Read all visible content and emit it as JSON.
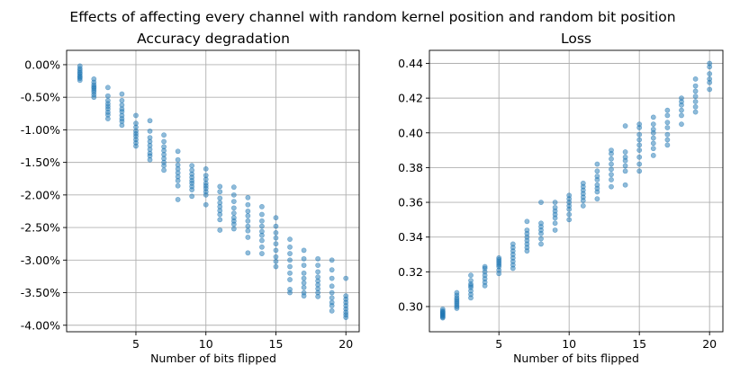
{
  "figure": {
    "suptitle": "Effects of affecting every channel with random kernel position and random bit position",
    "marker_color": "#1f77b4"
  },
  "chart_data": [
    {
      "type": "scatter",
      "title": "Accuracy degradation",
      "xlabel": "Number of bits flipped",
      "ylabel": "",
      "xlim": [
        0.05,
        20.95
      ],
      "ylim": [
        -4.1,
        0.22
      ],
      "xticks": [
        5,
        10,
        15,
        20
      ],
      "yticks": [
        0.0,
        -0.5,
        -1.0,
        -1.5,
        -2.0,
        -2.5,
        -3.0,
        -3.5,
        -4.0
      ],
      "ytick_labels": [
        "0.00%",
        "-0.50%",
        "-1.00%",
        "-1.50%",
        "-2.00%",
        "-2.50%",
        "-3.00%",
        "-3.50%",
        "-4.00%"
      ],
      "grid": true,
      "points": [
        {
          "x": 1,
          "y": [
            -0.02,
            -0.06,
            -0.09,
            -0.12,
            -0.14,
            -0.17,
            -0.19,
            -0.21,
            -0.24
          ]
        },
        {
          "x": 2,
          "y": [
            -0.22,
            -0.27,
            -0.31,
            -0.34,
            -0.36,
            -0.39,
            -0.42,
            -0.46,
            -0.5
          ]
        },
        {
          "x": 3,
          "y": [
            -0.35,
            -0.48,
            -0.55,
            -0.6,
            -0.64,
            -0.68,
            -0.73,
            -0.77,
            -0.83
          ]
        },
        {
          "x": 4,
          "y": [
            -0.45,
            -0.55,
            -0.62,
            -0.68,
            -0.72,
            -0.78,
            -0.83,
            -0.87,
            -0.93
          ]
        },
        {
          "x": 5,
          "y": [
            -0.78,
            -0.9,
            -0.96,
            -1.02,
            -1.06,
            -1.1,
            -1.15,
            -1.2,
            -1.25
          ]
        },
        {
          "x": 6,
          "y": [
            -0.86,
            -1.02,
            -1.12,
            -1.18,
            -1.24,
            -1.3,
            -1.36,
            -1.4,
            -1.46
          ]
        },
        {
          "x": 7,
          "y": [
            -1.08,
            -1.18,
            -1.26,
            -1.32,
            -1.38,
            -1.44,
            -1.5,
            -1.55,
            -1.62
          ]
        },
        {
          "x": 8,
          "y": [
            -1.33,
            -1.46,
            -1.54,
            -1.6,
            -1.66,
            -1.72,
            -1.78,
            -1.86,
            -2.07
          ]
        },
        {
          "x": 9,
          "y": [
            -1.55,
            -1.62,
            -1.68,
            -1.73,
            -1.78,
            -1.82,
            -1.87,
            -1.92,
            -2.02
          ]
        },
        {
          "x": 10,
          "y": [
            -1.6,
            -1.7,
            -1.76,
            -1.82,
            -1.86,
            -1.9,
            -1.95,
            -2.0,
            -2.15
          ]
        },
        {
          "x": 11,
          "y": [
            -1.87,
            -1.95,
            -2.05,
            -2.12,
            -2.18,
            -2.24,
            -2.3,
            -2.38,
            -2.54
          ]
        },
        {
          "x": 12,
          "y": [
            -1.88,
            -2.0,
            -2.1,
            -2.2,
            -2.28,
            -2.35,
            -2.4,
            -2.45,
            -2.52
          ]
        },
        {
          "x": 13,
          "y": [
            -2.04,
            -2.15,
            -2.25,
            -2.32,
            -2.4,
            -2.48,
            -2.55,
            -2.65,
            -2.89
          ]
        },
        {
          "x": 14,
          "y": [
            -2.18,
            -2.3,
            -2.4,
            -2.48,
            -2.56,
            -2.62,
            -2.7,
            -2.8,
            -2.9
          ]
        },
        {
          "x": 15,
          "y": [
            -2.35,
            -2.48,
            -2.58,
            -2.66,
            -2.75,
            -2.85,
            -2.95,
            -3.02,
            -3.1
          ]
        },
        {
          "x": 16,
          "y": [
            -2.68,
            -2.8,
            -2.9,
            -3.0,
            -3.1,
            -3.2,
            -3.3,
            -3.45,
            -3.5
          ]
        },
        {
          "x": 17,
          "y": [
            -2.85,
            -2.98,
            -3.08,
            -3.2,
            -3.28,
            -3.35,
            -3.42,
            -3.5,
            -3.55
          ]
        },
        {
          "x": 18,
          "y": [
            -2.98,
            -3.08,
            -3.18,
            -3.26,
            -3.32,
            -3.38,
            -3.44,
            -3.5,
            -3.56
          ]
        },
        {
          "x": 19,
          "y": [
            -3.0,
            -3.15,
            -3.28,
            -3.4,
            -3.5,
            -3.58,
            -3.65,
            -3.7,
            -3.78
          ]
        },
        {
          "x": 20,
          "y": [
            -3.28,
            -3.55,
            -3.6,
            -3.65,
            -3.7,
            -3.75,
            -3.8,
            -3.84,
            -3.88
          ]
        }
      ]
    },
    {
      "type": "scatter",
      "title": "Loss",
      "xlabel": "Number of bits flipped",
      "ylabel": "",
      "xlim": [
        0.05,
        20.95
      ],
      "ylim": [
        0.2855,
        0.4475
      ],
      "xticks": [
        5,
        10,
        15,
        20
      ],
      "yticks": [
        0.3,
        0.32,
        0.34,
        0.36,
        0.38,
        0.4,
        0.42,
        0.44
      ],
      "ytick_labels": [
        "0.30",
        "0.32",
        "0.34",
        "0.36",
        "0.38",
        "0.40",
        "0.42",
        "0.44"
      ],
      "grid": true,
      "points": [
        {
          "x": 1,
          "y": [
            0.2935,
            0.294,
            0.2945,
            0.295,
            0.2955,
            0.296,
            0.2965,
            0.297,
            0.2975,
            0.2985
          ]
        },
        {
          "x": 2,
          "y": [
            0.299,
            0.3,
            0.301,
            0.302,
            0.303,
            0.304,
            0.305,
            0.3065,
            0.308
          ]
        },
        {
          "x": 3,
          "y": [
            0.305,
            0.307,
            0.309,
            0.311,
            0.312,
            0.313,
            0.315,
            0.318
          ]
        },
        {
          "x": 4,
          "y": [
            0.312,
            0.314,
            0.316,
            0.318,
            0.32,
            0.322,
            0.323
          ]
        },
        {
          "x": 5,
          "y": [
            0.319,
            0.321,
            0.323,
            0.324,
            0.325,
            0.326,
            0.327,
            0.328
          ]
        },
        {
          "x": 6,
          "y": [
            0.322,
            0.324,
            0.326,
            0.328,
            0.33,
            0.332,
            0.334,
            0.336
          ]
        },
        {
          "x": 7,
          "y": [
            0.332,
            0.334,
            0.336,
            0.338,
            0.34,
            0.342,
            0.344,
            0.349
          ]
        },
        {
          "x": 8,
          "y": [
            0.336,
            0.339,
            0.342,
            0.344,
            0.346,
            0.348,
            0.36
          ]
        },
        {
          "x": 9,
          "y": [
            0.344,
            0.348,
            0.351,
            0.353,
            0.355,
            0.357,
            0.36
          ]
        },
        {
          "x": 10,
          "y": [
            0.35,
            0.353,
            0.356,
            0.358,
            0.36,
            0.362,
            0.364
          ]
        },
        {
          "x": 11,
          "y": [
            0.358,
            0.361,
            0.363,
            0.365,
            0.367,
            0.369,
            0.371
          ]
        },
        {
          "x": 12,
          "y": [
            0.362,
            0.366,
            0.368,
            0.37,
            0.373,
            0.375,
            0.378,
            0.382
          ]
        },
        {
          "x": 13,
          "y": [
            0.369,
            0.373,
            0.376,
            0.379,
            0.382,
            0.385,
            0.388,
            0.39
          ]
        },
        {
          "x": 14,
          "y": [
            0.37,
            0.378,
            0.381,
            0.384,
            0.386,
            0.389,
            0.404
          ]
        },
        {
          "x": 15,
          "y": [
            0.378,
            0.382,
            0.386,
            0.39,
            0.393,
            0.396,
            0.399,
            0.403,
            0.405
          ]
        },
        {
          "x": 16,
          "y": [
            0.387,
            0.391,
            0.394,
            0.397,
            0.4,
            0.402,
            0.405,
            0.409
          ]
        },
        {
          "x": 17,
          "y": [
            0.393,
            0.396,
            0.399,
            0.403,
            0.406,
            0.41,
            0.413
          ]
        },
        {
          "x": 18,
          "y": [
            0.405,
            0.41,
            0.413,
            0.416,
            0.418,
            0.42
          ]
        },
        {
          "x": 19,
          "y": [
            0.412,
            0.415,
            0.418,
            0.421,
            0.424,
            0.427,
            0.431
          ]
        },
        {
          "x": 20,
          "y": [
            0.425,
            0.429,
            0.431,
            0.434,
            0.438,
            0.44
          ]
        }
      ]
    }
  ]
}
